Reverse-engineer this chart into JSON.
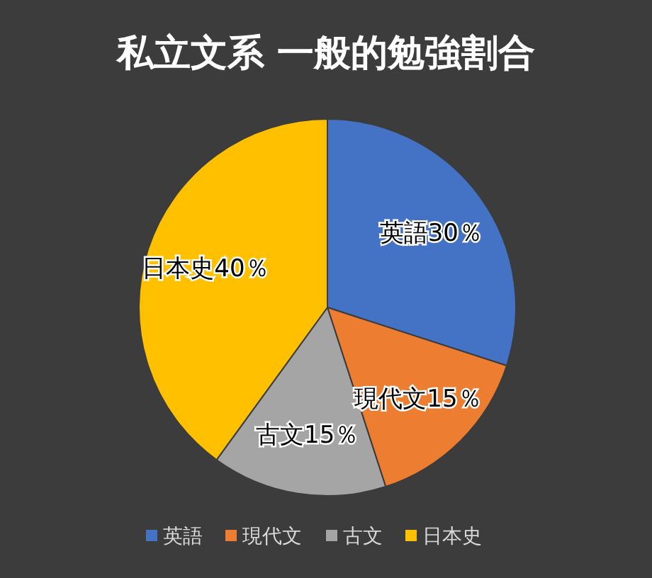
{
  "chart_data": {
    "type": "pie",
    "title": "私立文系 一般的勉強割合",
    "categories": [
      "英語",
      "現代文",
      "古文",
      "日本史"
    ],
    "values": [
      30,
      15,
      15,
      40
    ],
    "colors": [
      "#4472c4",
      "#ed7d31",
      "#a5a5a5",
      "#ffc000"
    ],
    "value_labels": [
      "英語30％",
      "現代文15％",
      "古文15％",
      "日本史40％"
    ],
    "legend": "bottom"
  }
}
